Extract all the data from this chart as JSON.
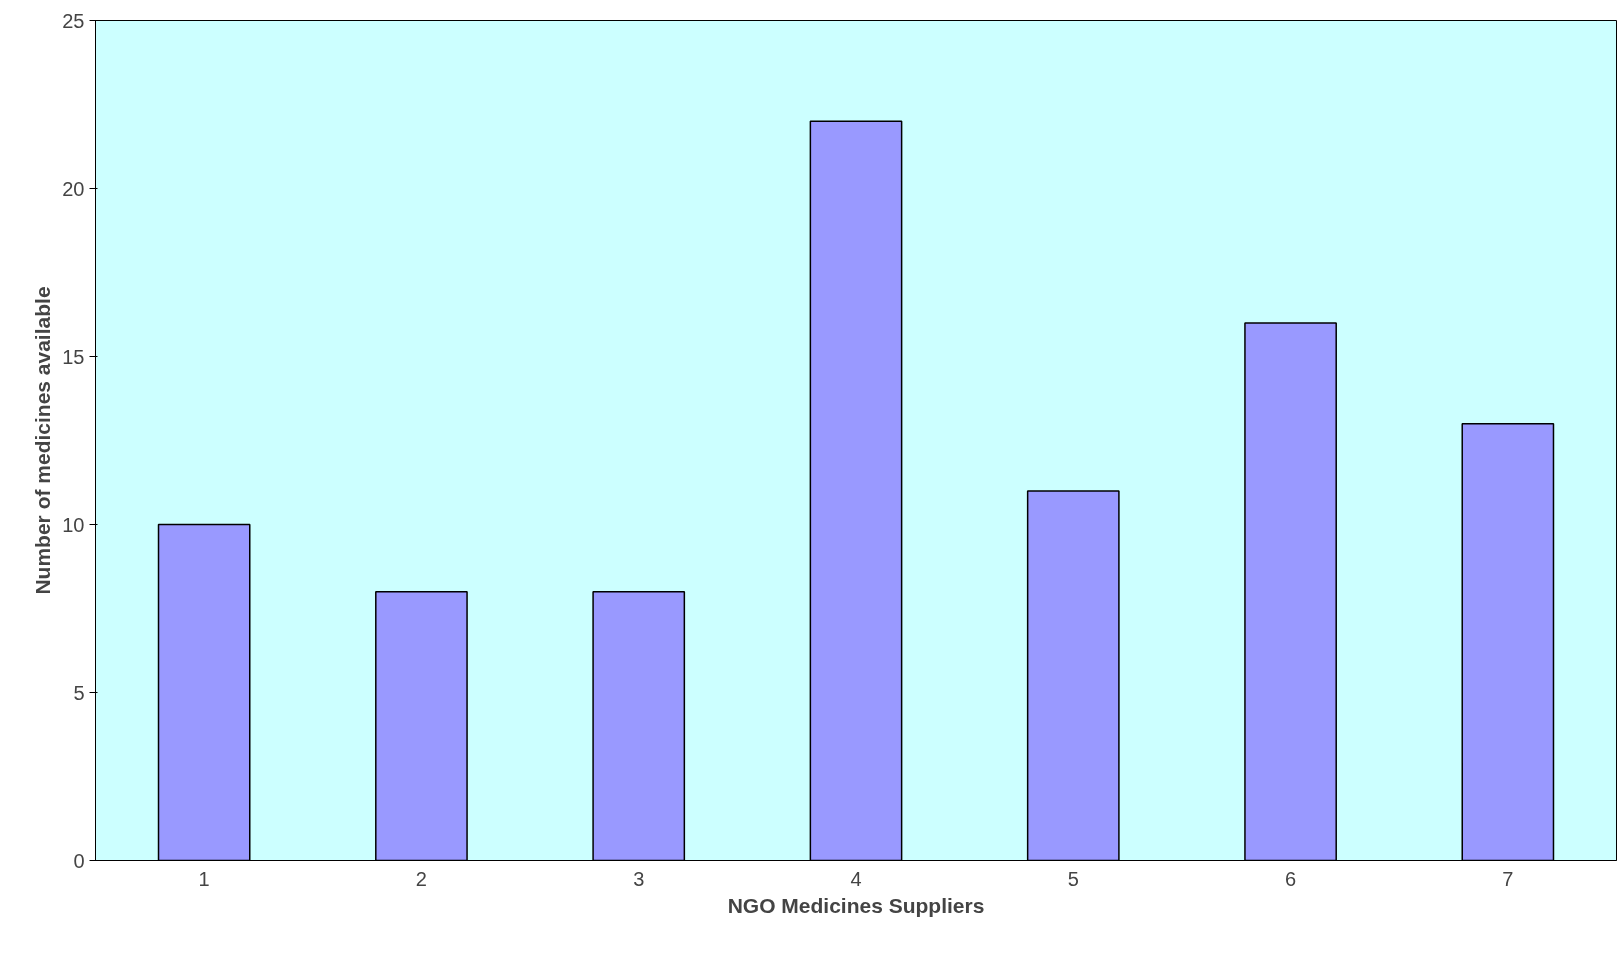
{
  "chart_data": {
    "type": "bar",
    "xlabel": "NGO Medicines Suppliers",
    "ylabel": "Number of medicines available",
    "categories": [
      "1",
      "2",
      "3",
      "4",
      "5",
      "6",
      "7"
    ],
    "values": [
      10,
      8,
      8,
      22,
      11,
      16,
      13
    ],
    "color": "#9999ff",
    "ylim": [
      0,
      25
    ],
    "yticks": [
      0,
      5,
      10,
      15,
      20,
      25
    ],
    "grid": false
  }
}
